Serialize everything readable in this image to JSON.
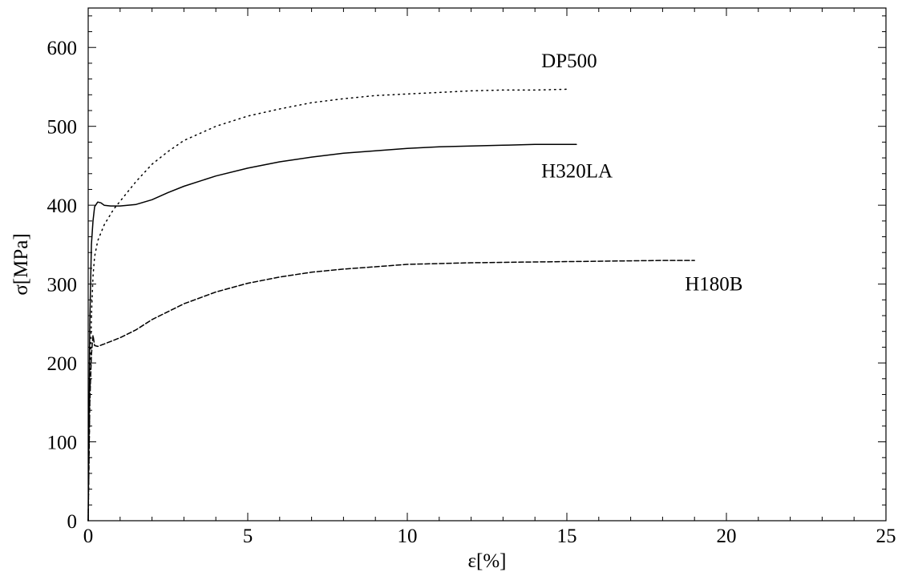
{
  "chart_data": {
    "type": "line",
    "xlabel": "ε[%]",
    "ylabel": "σ[MPa]",
    "xlim": [
      0,
      25
    ],
    "ylim": [
      0,
      650
    ],
    "xticks": [
      0,
      5,
      10,
      15,
      20,
      25
    ],
    "yticks": [
      0,
      100,
      200,
      300,
      400,
      500,
      600
    ],
    "xtick_labels": [
      "0",
      "5",
      "10",
      "15",
      "20",
      "25"
    ],
    "ytick_labels": [
      "0",
      "100",
      "200",
      "300",
      "400",
      "500",
      "600"
    ],
    "grid": false,
    "legend": "none (series labeled directly on plot)",
    "series": [
      {
        "name": "DP500",
        "line_style": "dotted",
        "color": "#000000",
        "x": [
          0,
          0.05,
          0.1,
          0.15,
          0.2,
          0.3,
          0.5,
          0.8,
          1.0,
          1.5,
          2.0,
          2.5,
          3.0,
          4.0,
          5.0,
          6.0,
          7.0,
          8.0,
          9.0,
          10.0,
          11.0,
          12.0,
          13.0,
          14.0,
          15.0
        ],
        "y": [
          0,
          150,
          260,
          310,
          335,
          355,
          375,
          395,
          405,
          430,
          452,
          468,
          482,
          500,
          513,
          522,
          530,
          535,
          539,
          541,
          543,
          545,
          546,
          546,
          547
        ]
      },
      {
        "name": "H320LA",
        "line_style": "solid",
        "color": "#000000",
        "x": [
          0,
          0.05,
          0.1,
          0.15,
          0.2,
          0.3,
          0.4,
          0.5,
          0.7,
          1.0,
          1.5,
          2.0,
          2.5,
          3.0,
          4.0,
          5.0,
          6.0,
          7.0,
          8.0,
          9.0,
          10.0,
          11.0,
          12.0,
          13.0,
          14.0,
          15.0,
          15.3
        ],
        "y": [
          0,
          250,
          350,
          380,
          398,
          404,
          403,
          400,
          399,
          399,
          401,
          407,
          416,
          424,
          437,
          447,
          455,
          461,
          466,
          469,
          472,
          474,
          475,
          476,
          477,
          477,
          477
        ]
      },
      {
        "name": "H180B",
        "line_style": "dashed",
        "color": "#000000",
        "x": [
          0,
          0.05,
          0.1,
          0.15,
          0.2,
          0.3,
          0.5,
          1.0,
          1.5,
          2.0,
          3.0,
          4.0,
          5.0,
          6.0,
          7.0,
          8.0,
          9.0,
          10.0,
          12.0,
          14.0,
          16.0,
          18.0,
          19.0
        ],
        "y": [
          0,
          150,
          210,
          235,
          222,
          221,
          224,
          232,
          242,
          255,
          275,
          290,
          301,
          309,
          315,
          319,
          322,
          325,
          327,
          328,
          329,
          330,
          330
        ]
      }
    ],
    "annotations": [
      {
        "text": "DP500",
        "x": 14.2,
        "y": 575
      },
      {
        "text": "H320LA",
        "x": 14.2,
        "y": 435
      },
      {
        "text": "H180B",
        "x": 18.7,
        "y": 292
      }
    ]
  }
}
